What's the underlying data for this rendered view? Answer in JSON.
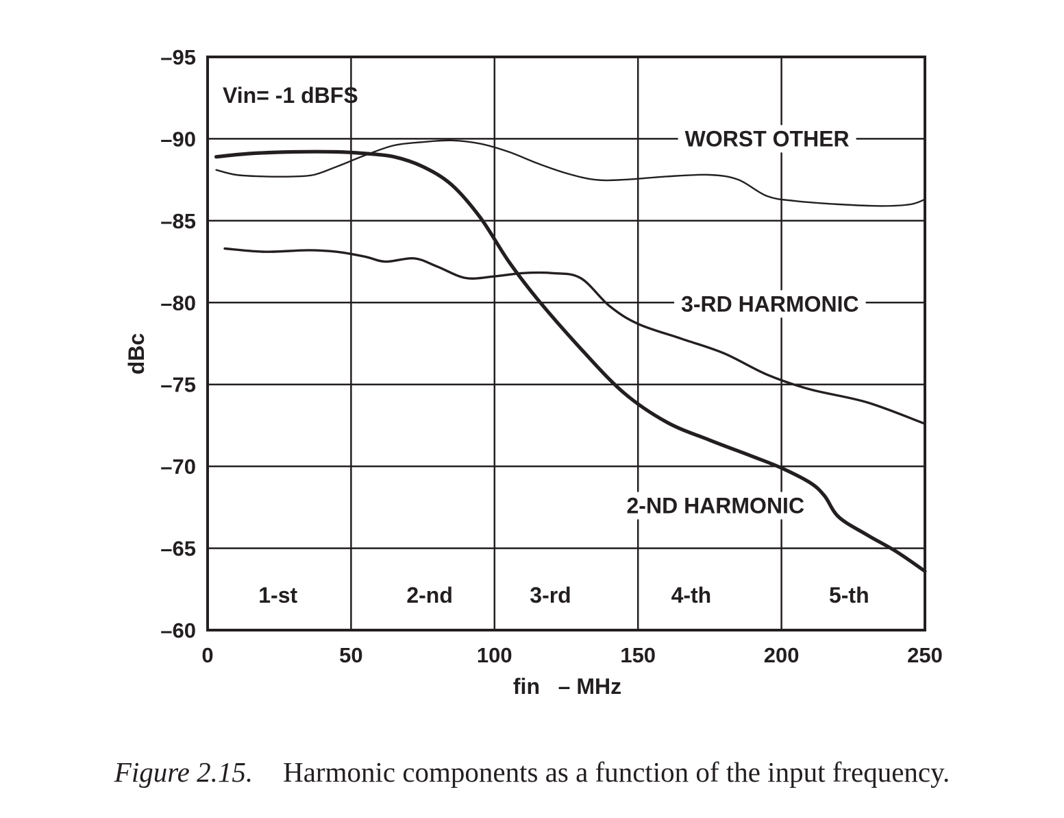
{
  "chart_data": {
    "type": "line",
    "xlabel": "fin   – MHz",
    "ylabel": "dBc",
    "xlim": [
      0,
      250
    ],
    "ylim": [
      -95,
      -60
    ],
    "x_ticks": [
      0,
      50,
      100,
      150,
      200,
      250
    ],
    "x_tick_labels": [
      "0",
      "50",
      "100",
      "150",
      "200",
      "250"
    ],
    "y_ticks": [
      -95,
      -90,
      -85,
      -80,
      -75,
      -70,
      -65,
      -60
    ],
    "y_tick_labels": [
      "–95",
      "–90",
      "–85",
      "–80",
      "–75",
      "–70",
      "–65",
      "–60"
    ],
    "grid": true,
    "annotation": "Vin= -1 dBFS",
    "zones": [
      "1-st",
      "2-nd",
      "3-rd",
      "4-th",
      "5-th"
    ],
    "series": [
      {
        "name": "WORST OTHER",
        "x": [
          3,
          10,
          20,
          30,
          37,
          45,
          55,
          65,
          75,
          85,
          95,
          105,
          115,
          125,
          135,
          145,
          160,
          175,
          185,
          195,
          205,
          220,
          235,
          245,
          250
        ],
        "y": [
          -88.1,
          -87.8,
          -87.7,
          -87.7,
          -87.8,
          -88.3,
          -89.0,
          -89.6,
          -89.8,
          -89.9,
          -89.7,
          -89.2,
          -88.5,
          -87.9,
          -87.5,
          -87.5,
          -87.7,
          -87.8,
          -87.5,
          -86.5,
          -86.2,
          -86.0,
          -85.9,
          -86.0,
          -86.3
        ],
        "line_weight": "thin"
      },
      {
        "name": "2-ND HARMONIC",
        "x": [
          3,
          15,
          30,
          45,
          55,
          65,
          75,
          85,
          95,
          105,
          115,
          130,
          145,
          160,
          175,
          190,
          200,
          210,
          215,
          220,
          230,
          240,
          250
        ],
        "y": [
          -88.9,
          -89.1,
          -89.2,
          -89.2,
          -89.1,
          -88.9,
          -88.3,
          -87.2,
          -85.2,
          -82.5,
          -80.2,
          -77.2,
          -74.5,
          -72.7,
          -71.6,
          -70.6,
          -69.9,
          -69.0,
          -68.2,
          -66.9,
          -65.8,
          -64.8,
          -63.6
        ],
        "line_weight": "thick"
      },
      {
        "name": "3-RD HARMONIC",
        "x": [
          6,
          20,
          35,
          45,
          55,
          62,
          72,
          80,
          90,
          100,
          110,
          120,
          130,
          140,
          150,
          165,
          180,
          195,
          210,
          230,
          250
        ],
        "y": [
          -83.3,
          -83.1,
          -83.2,
          -83.1,
          -82.8,
          -82.5,
          -82.7,
          -82.2,
          -81.5,
          -81.6,
          -81.8,
          -81.8,
          -81.5,
          -79.8,
          -78.7,
          -77.8,
          -76.9,
          -75.6,
          -74.7,
          -73.9,
          -72.6
        ],
        "line_weight": "medium"
      }
    ]
  },
  "caption": {
    "figure_number": "Figure 2.15.",
    "text": "Harmonic components as a function of the input frequency."
  },
  "colors": {
    "ink": "#231f20",
    "background": "#ffffff"
  }
}
